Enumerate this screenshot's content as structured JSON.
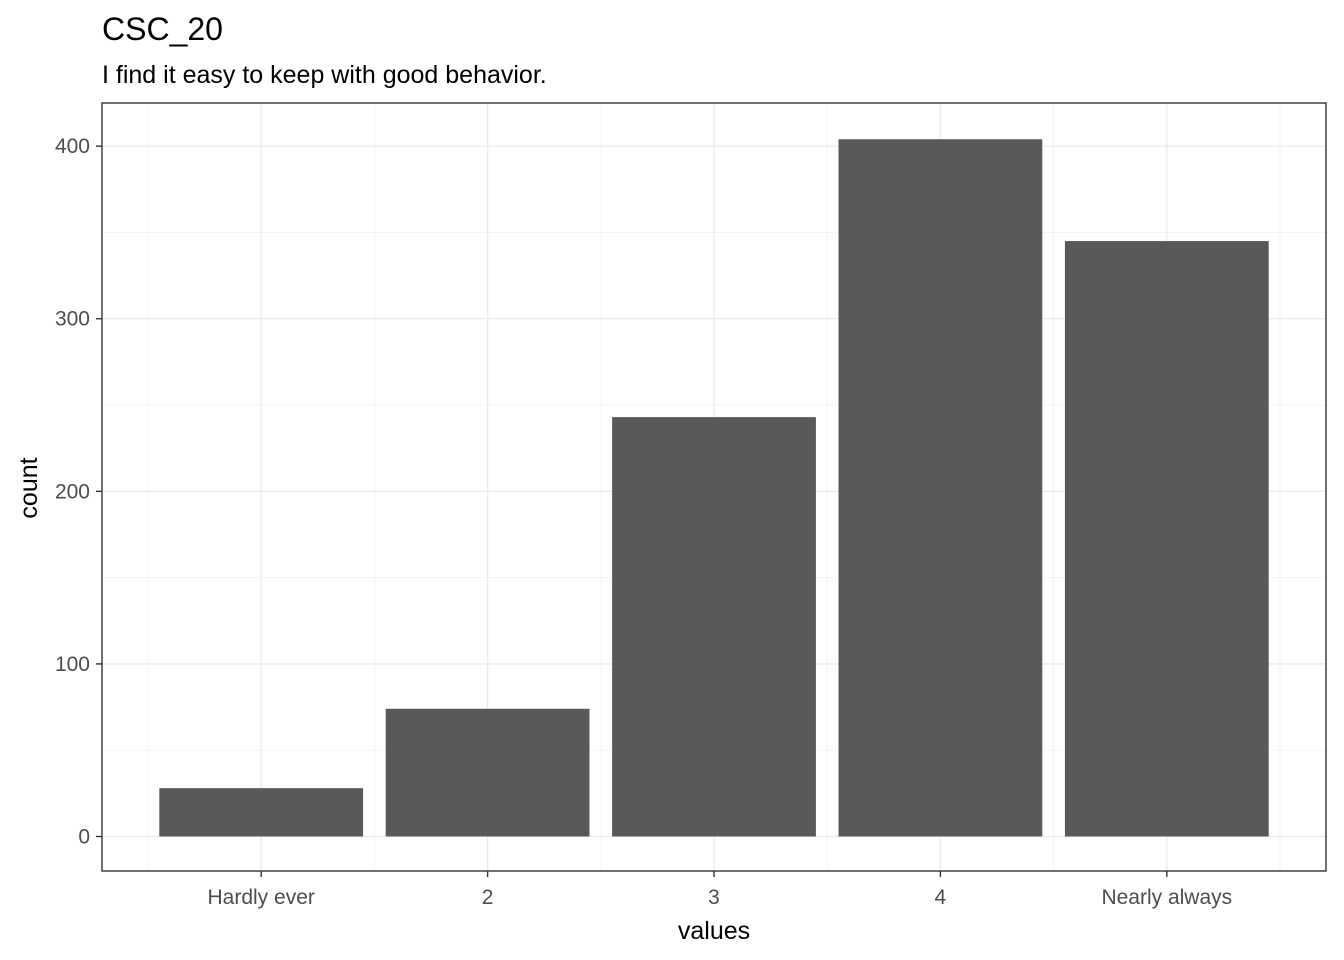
{
  "chart_data": {
    "type": "bar",
    "title": "CSC_20",
    "subtitle": "I find it easy to keep with good behavior.",
    "xlabel": "values",
    "ylabel": "count",
    "categories": [
      "Hardly ever",
      "2",
      "3",
      "4",
      "Nearly always"
    ],
    "values": [
      28,
      74,
      243,
      404,
      345
    ],
    "ylim": [
      -20,
      425
    ],
    "yticks": [
      0,
      100,
      200,
      300,
      400
    ],
    "grid": true,
    "legend": "none",
    "colors": {
      "bar": "#595959",
      "panel_border": "#333333",
      "grid": "#ebebeb"
    }
  }
}
